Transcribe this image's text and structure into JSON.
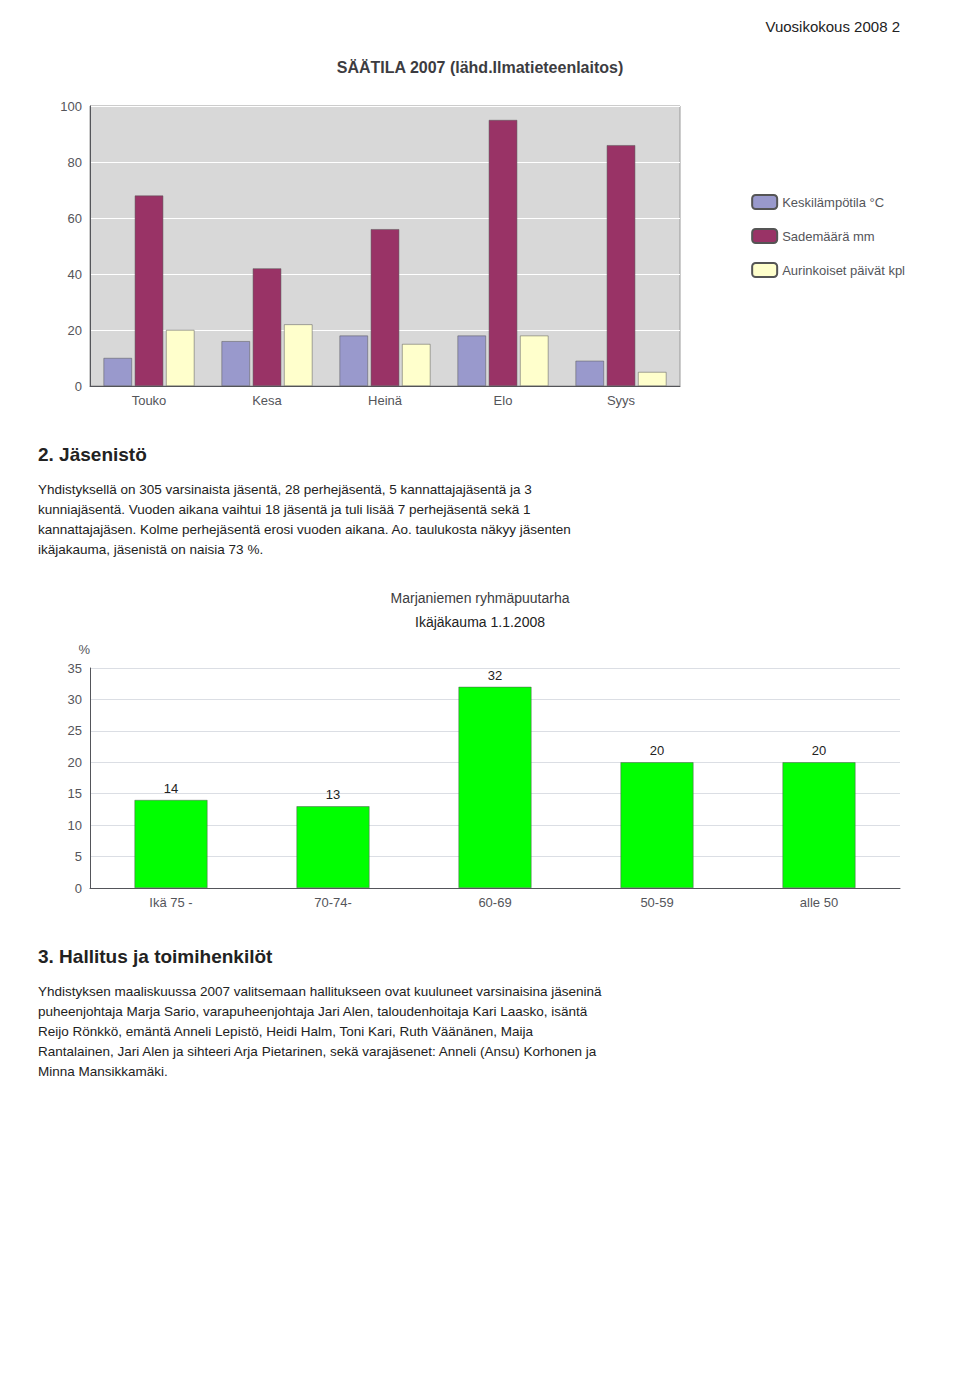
{
  "title": "Vuosikokous 2008 2",
  "chart_data": [
    {
      "type": "bar",
      "title": "SÄÄTILA 2007 (lähd.Ilmatieteenlaitos)",
      "categories": [
        "Touko",
        "Kesa",
        "Heinä",
        "Elo",
        "Syys"
      ],
      "series": [
        {
          "name": "Keskilämpötila °C",
          "color": "#9999CC",
          "values": [
            10,
            16,
            18,
            18,
            9
          ]
        },
        {
          "name": "Sademäärä mm",
          "color": "#993366",
          "values": [
            68,
            42,
            56,
            95,
            86
          ]
        },
        {
          "name": "Aurinkoiset päivät kpl",
          "color": "#FFFFCC",
          "values": [
            20,
            22,
            15,
            18,
            5
          ]
        }
      ],
      "ylim": [
        0,
        100
      ],
      "yticks": [
        0,
        20,
        40,
        60,
        80,
        100
      ],
      "grid": true,
      "legend": "right"
    },
    {
      "type": "bar",
      "title": "Marjaniemen ryhmäpuutarha",
      "subtitle": "Ikäjäkauma 1.1.2008",
      "ylabel": "%",
      "categories": [
        "Ikä 75 -",
        "70-74-",
        "60-69",
        "50-59",
        "alle 50"
      ],
      "values": [
        14,
        13,
        32,
        20,
        20
      ],
      "color": "#00FF00",
      "ylim": [
        0,
        35
      ],
      "yticks": [
        0,
        5,
        10,
        15,
        20,
        25,
        30,
        35
      ],
      "grid": true,
      "data_labels": true
    }
  ],
  "annotations": [
    {
      "title": "2. Jäsenistö",
      "text": [
        "Yhdistyksellä on 305 varsinaista jäsentä, 28 perhejäsentä, 5 kannattajajäsentä ja 3",
        "kunniajäsentä. Vuoden aikana vaihtui 18 jäsentä ja tuli lisää 7 perhejäsentä sekä 1",
        "kannattajajäsen. Kolme perhejäsentä erosi vuoden aikana. Ao. taulukosta näkyy jäsenten",
        "ikäjakauma, jäsenistä on naisia 73 %."
      ]
    },
    {
      "title": "3. Hallitus ja toimihenkilöt",
      "text": [
        "Yhdistyksen maaliskuussa 2007 valitsemaan hallitukseen ovat kuuluneet varsinaisina jäseninä",
        "puheenjohtaja Marja Sario, varapuheenjohtaja Jari Alen, taloudenhoitaja Kari Laasko, isäntä",
        "Reijo Rönkkö, emäntä Anneli Lepistö, Heidi Halm, Toni Kari, Ruth Väänänen, Maija",
        "Rantalainen, Jari Alen ja sihteeri Arja Pietarinen, sekä varajäsenet: Anneli (Ansu) Korhonen ja",
        "Minna Mansikkamäki."
      ]
    }
  ]
}
